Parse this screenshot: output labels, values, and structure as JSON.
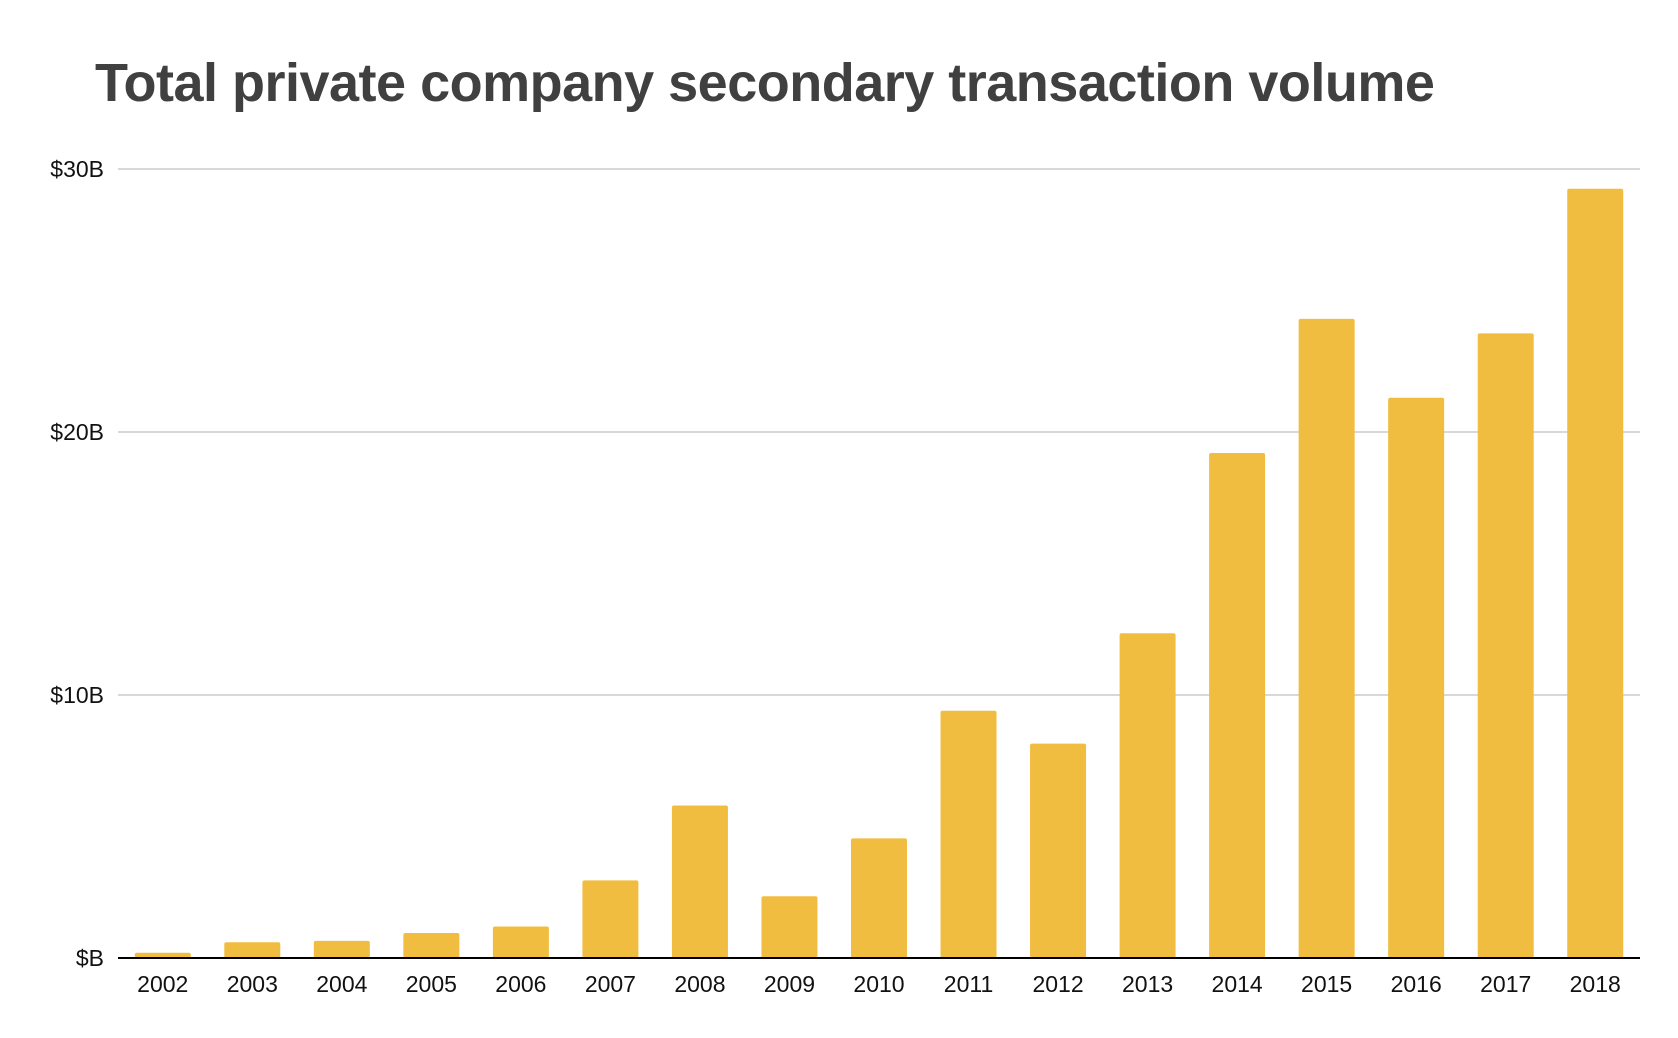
{
  "chart_data": {
    "type": "bar",
    "title": "Total private company secondary transaction volume",
    "xlabel": "",
    "ylabel": "",
    "categories": [
      "2002",
      "2003",
      "2004",
      "2005",
      "2006",
      "2007",
      "2008",
      "2009",
      "2010",
      "2011",
      "2012",
      "2013",
      "2014",
      "2015",
      "2016",
      "2017",
      "2018"
    ],
    "values": [
      0.2,
      0.6,
      0.65,
      0.95,
      1.2,
      2.95,
      5.8,
      2.35,
      4.55,
      9.4,
      8.15,
      12.35,
      19.2,
      24.3,
      21.3,
      23.75,
      29.25
    ],
    "y_ticks": [
      {
        "value": 0,
        "label": "$B"
      },
      {
        "value": 10,
        "label": "$10B"
      },
      {
        "value": 20,
        "label": "$20B"
      },
      {
        "value": 30,
        "label": "$30B"
      }
    ],
    "ylim": [
      0,
      30
    ],
    "grid": true,
    "legend": "none",
    "colors": {
      "bar": "#F0BD40",
      "grid": "#CCCCCC",
      "axis": "#000000",
      "title": "#404040"
    }
  }
}
